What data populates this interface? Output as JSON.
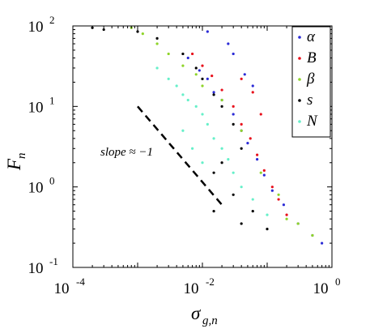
{
  "chart_data": {
    "type": "scatter",
    "x_scale": "log",
    "y_scale": "log",
    "xlim": [
      0.0001,
      1
    ],
    "ylim": [
      0.1,
      100
    ],
    "xticks": [
      {
        "value": 0.0001,
        "base": "10",
        "exp": "-4"
      },
      {
        "value": 0.01,
        "base": "10",
        "exp": "-2"
      },
      {
        "value": 1,
        "base": "10",
        "exp": "0"
      }
    ],
    "yticks": [
      {
        "value": 0.1,
        "base": "10",
        "exp": "-1"
      },
      {
        "value": 1,
        "base": "10",
        "exp": "0"
      },
      {
        "value": 10,
        "base": "10",
        "exp": "1"
      },
      {
        "value": 100,
        "base": "10",
        "exp": "2"
      }
    ],
    "xlabel": {
      "main": "σ",
      "sub": "g,n"
    },
    "ylabel": {
      "main": "F",
      "sub": "n"
    },
    "legend_position": "top-right",
    "grid": false,
    "series": [
      {
        "name": "α",
        "color": "#2b2bd6",
        "points": [
          [
            0.006,
            40
          ],
          [
            0.009,
            28
          ],
          [
            0.012,
            22
          ],
          [
            0.015,
            15
          ],
          [
            0.02,
            12
          ],
          [
            0.03,
            8
          ],
          [
            0.04,
            5
          ],
          [
            0.05,
            3.5
          ],
          [
            0.07,
            2.2
          ],
          [
            0.09,
            1.4
          ],
          [
            0.12,
            0.9
          ],
          [
            0.18,
            0.6
          ],
          [
            0.3,
            0.35
          ],
          [
            0.5,
            0.25
          ],
          [
            0.7,
            0.2
          ],
          [
            0.025,
            60
          ],
          [
            0.03,
            45
          ],
          [
            0.012,
            85
          ],
          [
            0.045,
            25
          ],
          [
            0.06,
            18
          ]
        ]
      },
      {
        "name": "B",
        "color": "#e8101c",
        "points": [
          [
            0.007,
            45
          ],
          [
            0.01,
            32
          ],
          [
            0.014,
            24
          ],
          [
            0.02,
            16
          ],
          [
            0.03,
            10
          ],
          [
            0.04,
            6
          ],
          [
            0.055,
            4
          ],
          [
            0.07,
            2.5
          ],
          [
            0.09,
            1.6
          ],
          [
            0.12,
            1
          ],
          [
            0.15,
            0.7
          ],
          [
            0.2,
            0.45
          ],
          [
            0.06,
            15
          ],
          [
            0.04,
            22
          ],
          [
            0.08,
            8
          ]
        ]
      },
      {
        "name": "β",
        "color": "#8fd42a",
        "points": [
          [
            0.0008,
            95
          ],
          [
            0.0012,
            80
          ],
          [
            0.002,
            60
          ],
          [
            0.003,
            45
          ],
          [
            0.005,
            32
          ],
          [
            0.008,
            25
          ],
          [
            0.01,
            18
          ],
          [
            0.02,
            12
          ],
          [
            0.04,
            5
          ],
          [
            0.08,
            1.5
          ],
          [
            0.15,
            0.8
          ],
          [
            0.3,
            0.35
          ],
          [
            0.5,
            0.25
          ],
          [
            0.2,
            0.4
          ]
        ]
      },
      {
        "name": "s",
        "color": "#000000",
        "points": [
          [
            0.0002,
            95
          ],
          [
            0.0003,
            90
          ],
          [
            0.001,
            85
          ],
          [
            0.002,
            70
          ],
          [
            0.005,
            45
          ],
          [
            0.008,
            30
          ],
          [
            0.01,
            22
          ],
          [
            0.015,
            14
          ],
          [
            0.02,
            10
          ],
          [
            0.03,
            6
          ],
          [
            0.04,
            3
          ],
          [
            0.02,
            2
          ],
          [
            0.015,
            1.5
          ],
          [
            0.03,
            0.8
          ],
          [
            0.06,
            0.5
          ],
          [
            0.1,
            0.3
          ],
          [
            0.015,
            0.5
          ],
          [
            0.04,
            0.35
          ]
        ]
      },
      {
        "name": "N",
        "color": "#66f0c9",
        "points": [
          [
            0.002,
            30
          ],
          [
            0.003,
            22
          ],
          [
            0.004,
            18
          ],
          [
            0.005,
            14
          ],
          [
            0.006,
            12
          ],
          [
            0.008,
            10
          ],
          [
            0.01,
            8
          ],
          [
            0.012,
            6
          ],
          [
            0.015,
            4
          ],
          [
            0.02,
            3
          ],
          [
            0.025,
            2.2
          ],
          [
            0.03,
            1.5
          ],
          [
            0.04,
            1
          ],
          [
            0.06,
            0.7
          ],
          [
            0.1,
            0.45
          ],
          [
            0.007,
            3
          ],
          [
            0.005,
            5
          ],
          [
            0.01,
            2
          ]
        ]
      }
    ],
    "annotations": [
      {
        "text": "slope ≈ −1",
        "line": {
          "from": [
            0.001,
            10
          ],
          "to": [
            0.02,
            0.6
          ]
        }
      }
    ]
  }
}
